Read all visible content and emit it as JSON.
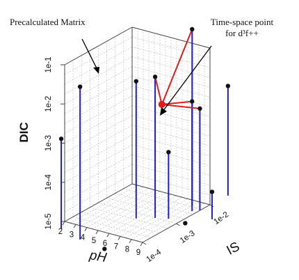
{
  "chart_data": {
    "type": "scatter",
    "subtype": "3d-stem",
    "title": "",
    "annotations": {
      "matrix_label": "Precalculated Matrix",
      "point_label_line1": "Time-space point",
      "point_label_line2": "for d³f++"
    },
    "axes": {
      "x": {
        "label": "pH",
        "ticks": [
          "2",
          "3",
          "4",
          "5",
          "6",
          "7",
          "8",
          "9"
        ],
        "range": [
          2,
          9
        ]
      },
      "y": {
        "label": "IS",
        "ticks": [
          "1e-4",
          "1e-3",
          "1e-2"
        ],
        "range": [
          -4,
          -2
        ],
        "scale": "log"
      },
      "z": {
        "label": "DIC",
        "ticks": [
          "1e-5",
          "1e-4",
          "1e-3",
          "1e-2",
          "1e-1"
        ],
        "range": [
          -5,
          -1
        ],
        "scale": "log"
      }
    },
    "grid": true,
    "colors": {
      "stem": "#1c1cd6",
      "point": "#111111",
      "highlight": "#e01b1b",
      "grid": "#b8b8b8",
      "axis": "#444444"
    },
    "series": [
      {
        "points": [
          {
            "pH": 2.6,
            "IS": -4.3,
            "DIC": -2.7
          },
          {
            "pH": 4.9,
            "IS": -4.5,
            "DIC": -1.1
          },
          {
            "pH": 6.0,
            "IS": -3.2,
            "DIC": -1.5
          },
          {
            "pH": 7.1,
            "IS": -3.0,
            "DIC": -1.4
          },
          {
            "pH": 8.0,
            "IS": -2.2,
            "DIC": -0.5
          },
          {
            "pH": 8.6,
            "IS": -2.4,
            "DIC": -2.2
          },
          {
            "pH": 9.0,
            "IS": -2.3,
            "DIC": -2.4
          },
          {
            "pH": 8.0,
            "IS": -2.9,
            "DIC": -3.3
          },
          {
            "pH": 9.5,
            "IS": -2.9,
            "DIC": -5.0
          },
          {
            "pH": 7.4,
            "IS": -4.6,
            "DIC": -5.0
          },
          {
            "pH": 9.1,
            "IS": -1.5,
            "DIC": -2.2
          },
          {
            "pH": 10.7,
            "IS": -2.5,
            "DIC": -4.3
          }
        ]
      }
    ],
    "highlight_point": {
      "pH": 7.1,
      "IS": -2.8,
      "DIC": -2.2
    },
    "highlight_neighbors": [
      3,
      4,
      5,
      6
    ]
  }
}
